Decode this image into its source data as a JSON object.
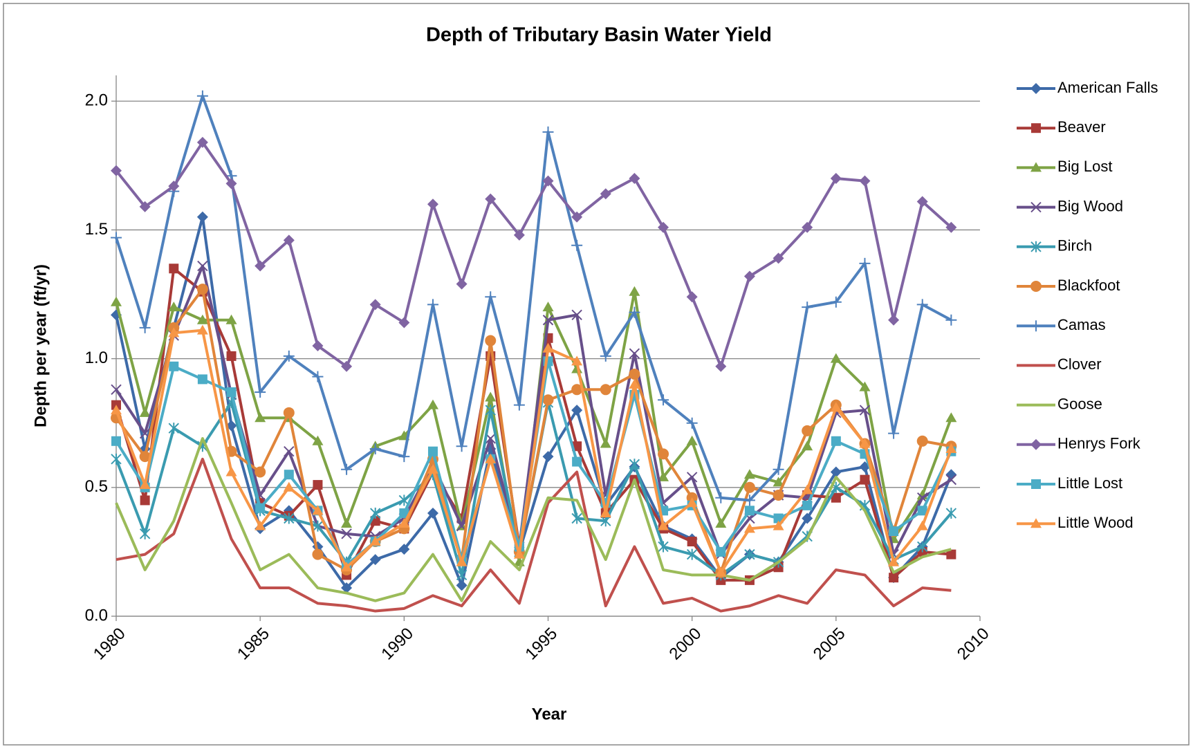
{
  "chart_data": {
    "type": "line",
    "title": "Depth of Tributary Basin Water Yield",
    "x_label": "Year",
    "y_label": "Depth per year (ft/yr)",
    "x": [
      1980,
      1981,
      1982,
      1983,
      1984,
      1985,
      1986,
      1987,
      1988,
      1989,
      1990,
      1991,
      1992,
      1993,
      1994,
      1995,
      1996,
      1997,
      1998,
      1999,
      2000,
      2001,
      2002,
      2003,
      2004,
      2005,
      2006,
      2007,
      2008,
      2009
    ],
    "xlim": [
      1980,
      2010
    ],
    "xticks": [
      1980,
      1985,
      1990,
      1995,
      2000,
      2005,
      2010
    ],
    "ylim": [
      0,
      2.1
    ],
    "yticks": [
      {
        "value": 0,
        "label": "0.0"
      },
      {
        "value": 0.5,
        "label": "0.5"
      },
      {
        "value": 1,
        "label": "1.0"
      },
      {
        "value": 1.5,
        "label": "1.5"
      },
      {
        "value": 2,
        "label": "2.0"
      }
    ],
    "grid": true,
    "legend": "right",
    "series": [
      {
        "name": "American Falls",
        "color": "#3d6aa8",
        "marker": "diamond",
        "values": [
          1.17,
          0.65,
          1.12,
          1.55,
          0.74,
          0.34,
          0.41,
          0.27,
          0.11,
          0.22,
          0.26,
          0.4,
          0.12,
          0.65,
          0.25,
          0.62,
          0.8,
          0.43,
          0.58,
          0.35,
          0.3,
          0.15,
          0.24,
          0.21,
          0.38,
          0.56,
          0.58,
          0.15,
          0.27,
          0.55
        ]
      },
      {
        "name": "Beaver",
        "color": "#a83a37",
        "marker": "square",
        "values": [
          0.82,
          0.45,
          1.35,
          1.26,
          1.01,
          0.44,
          0.39,
          0.51,
          0.16,
          0.37,
          0.34,
          0.56,
          0.38,
          1.01,
          0.27,
          1.08,
          0.66,
          0.4,
          0.53,
          0.34,
          0.29,
          0.14,
          0.14,
          0.19,
          0.47,
          0.46,
          0.53,
          0.15,
          0.25,
          0.24
        ]
      },
      {
        "name": "Big Lost",
        "color": "#7ea345",
        "marker": "triangle",
        "values": [
          1.22,
          0.79,
          1.2,
          1.15,
          1.15,
          0.77,
          0.77,
          0.68,
          0.36,
          0.66,
          0.7,
          0.82,
          0.35,
          0.85,
          0.21,
          1.2,
          0.96,
          0.67,
          1.26,
          0.54,
          0.68,
          0.36,
          0.55,
          0.52,
          0.66,
          1.0,
          0.89,
          0.3,
          0.47,
          0.77
        ]
      },
      {
        "name": "Big Wood",
        "color": "#674f8a",
        "marker": "x",
        "values": [
          0.88,
          0.71,
          1.09,
          1.36,
          0.86,
          0.47,
          0.64,
          0.35,
          0.32,
          0.31,
          0.38,
          0.59,
          0.35,
          0.69,
          0.27,
          1.15,
          1.17,
          0.47,
          1.02,
          0.44,
          0.54,
          0.24,
          0.38,
          0.47,
          0.46,
          0.79,
          0.8,
          0.24,
          0.46,
          0.53
        ]
      },
      {
        "name": "Birch",
        "color": "#3a9bb0",
        "marker": "star",
        "values": [
          0.61,
          0.32,
          0.73,
          0.66,
          0.83,
          0.41,
          0.38,
          0.35,
          0.21,
          0.4,
          0.45,
          0.55,
          0.16,
          0.8,
          0.25,
          0.83,
          0.38,
          0.37,
          0.59,
          0.27,
          0.24,
          0.16,
          0.24,
          0.21,
          0.31,
          0.5,
          0.43,
          0.22,
          0.27,
          0.4
        ]
      },
      {
        "name": "Blackfoot",
        "color": "#e0853a",
        "marker": "circle",
        "values": [
          0.77,
          0.62,
          1.12,
          1.27,
          0.64,
          0.56,
          0.79,
          0.24,
          0.18,
          0.29,
          0.34,
          0.61,
          0.22,
          1.07,
          0.25,
          0.84,
          0.88,
          0.88,
          0.94,
          0.63,
          0.46,
          0.17,
          0.5,
          0.47,
          0.72,
          0.82,
          0.67,
          0.33,
          0.68,
          0.66
        ]
      },
      {
        "name": "Camas",
        "color": "#4f81bd",
        "marker": "plus",
        "values": [
          1.47,
          1.12,
          1.65,
          2.02,
          1.71,
          0.87,
          1.01,
          0.93,
          0.57,
          0.65,
          0.62,
          1.21,
          0.66,
          1.24,
          0.82,
          1.88,
          1.44,
          1.01,
          1.18,
          0.84,
          0.75,
          0.46,
          0.45,
          0.57,
          1.2,
          1.22,
          1.37,
          0.71,
          1.21,
          1.15
        ]
      },
      {
        "name": "Clover",
        "color": "#c0504d",
        "marker": "none",
        "values": [
          0.22,
          0.24,
          0.32,
          0.61,
          0.3,
          0.11,
          0.11,
          0.05,
          0.04,
          0.02,
          0.03,
          0.08,
          0.04,
          0.18,
          0.05,
          0.44,
          0.56,
          0.04,
          0.27,
          0.05,
          0.07,
          0.02,
          0.04,
          0.08,
          0.05,
          0.18,
          0.16,
          0.04,
          0.11,
          0.1
        ]
      },
      {
        "name": "Goose",
        "color": "#9bbb59",
        "marker": "none",
        "values": [
          0.44,
          0.18,
          0.37,
          0.69,
          0.44,
          0.18,
          0.24,
          0.11,
          0.09,
          0.06,
          0.09,
          0.24,
          0.06,
          0.29,
          0.18,
          0.46,
          0.45,
          0.22,
          0.53,
          0.18,
          0.16,
          0.16,
          0.14,
          0.21,
          0.3,
          0.54,
          0.41,
          0.17,
          0.23,
          0.26
        ]
      },
      {
        "name": "Henrys Fork",
        "color": "#8064a2",
        "marker": "diamond",
        "values": [
          1.73,
          1.59,
          1.67,
          1.84,
          1.68,
          1.36,
          1.46,
          1.05,
          0.97,
          1.21,
          1.14,
          1.6,
          1.29,
          1.62,
          1.48,
          1.69,
          1.55,
          1.64,
          1.7,
          1.51,
          1.24,
          0.97,
          1.32,
          1.39,
          1.51,
          1.7,
          1.69,
          1.15,
          1.61,
          1.51
        ]
      },
      {
        "name": "Little Lost",
        "color": "#4bacc6",
        "marker": "square",
        "values": [
          0.68,
          0.5,
          0.97,
          0.92,
          0.87,
          0.42,
          0.55,
          0.41,
          0.2,
          0.29,
          0.4,
          0.64,
          0.22,
          0.61,
          0.27,
          0.99,
          0.6,
          0.44,
          0.86,
          0.41,
          0.43,
          0.25,
          0.41,
          0.38,
          0.43,
          0.68,
          0.63,
          0.33,
          0.41,
          0.64
        ]
      },
      {
        "name": "Little Wood",
        "color": "#f79646",
        "marker": "triangle",
        "values": [
          0.8,
          0.51,
          1.1,
          1.11,
          0.56,
          0.35,
          0.5,
          0.41,
          0.19,
          0.29,
          0.36,
          0.57,
          0.21,
          0.61,
          0.24,
          1.04,
          0.99,
          0.4,
          0.9,
          0.35,
          0.44,
          0.17,
          0.34,
          0.35,
          0.49,
          0.81,
          0.67,
          0.21,
          0.35,
          0.65
        ]
      }
    ]
  }
}
